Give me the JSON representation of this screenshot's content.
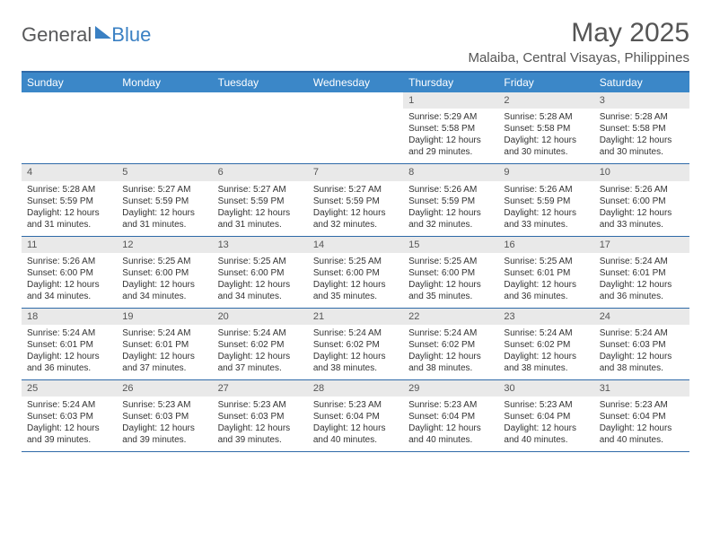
{
  "logo": {
    "general": "General",
    "blue": "Blue"
  },
  "title": "May 2025",
  "location": "Malaiba, Central Visayas, Philippines",
  "weekdays": [
    "Sunday",
    "Monday",
    "Tuesday",
    "Wednesday",
    "Thursday",
    "Friday",
    "Saturday"
  ],
  "colors": {
    "header_bg": "#3b87c8",
    "header_text": "#ffffff",
    "border": "#2f6aa8",
    "daynum_bg": "#e9e9e9",
    "body_text": "#333333",
    "title_text": "#555555",
    "logo_gray": "#57585a",
    "logo_blue": "#3a80c3"
  },
  "weeks": [
    [
      null,
      null,
      null,
      null,
      {
        "n": "1",
        "sr": "Sunrise: 5:29 AM",
        "ss": "Sunset: 5:58 PM",
        "d1": "Daylight: 12 hours",
        "d2": "and 29 minutes."
      },
      {
        "n": "2",
        "sr": "Sunrise: 5:28 AM",
        "ss": "Sunset: 5:58 PM",
        "d1": "Daylight: 12 hours",
        "d2": "and 30 minutes."
      },
      {
        "n": "3",
        "sr": "Sunrise: 5:28 AM",
        "ss": "Sunset: 5:58 PM",
        "d1": "Daylight: 12 hours",
        "d2": "and 30 minutes."
      }
    ],
    [
      {
        "n": "4",
        "sr": "Sunrise: 5:28 AM",
        "ss": "Sunset: 5:59 PM",
        "d1": "Daylight: 12 hours",
        "d2": "and 31 minutes."
      },
      {
        "n": "5",
        "sr": "Sunrise: 5:27 AM",
        "ss": "Sunset: 5:59 PM",
        "d1": "Daylight: 12 hours",
        "d2": "and 31 minutes."
      },
      {
        "n": "6",
        "sr": "Sunrise: 5:27 AM",
        "ss": "Sunset: 5:59 PM",
        "d1": "Daylight: 12 hours",
        "d2": "and 31 minutes."
      },
      {
        "n": "7",
        "sr": "Sunrise: 5:27 AM",
        "ss": "Sunset: 5:59 PM",
        "d1": "Daylight: 12 hours",
        "d2": "and 32 minutes."
      },
      {
        "n": "8",
        "sr": "Sunrise: 5:26 AM",
        "ss": "Sunset: 5:59 PM",
        "d1": "Daylight: 12 hours",
        "d2": "and 32 minutes."
      },
      {
        "n": "9",
        "sr": "Sunrise: 5:26 AM",
        "ss": "Sunset: 5:59 PM",
        "d1": "Daylight: 12 hours",
        "d2": "and 33 minutes."
      },
      {
        "n": "10",
        "sr": "Sunrise: 5:26 AM",
        "ss": "Sunset: 6:00 PM",
        "d1": "Daylight: 12 hours",
        "d2": "and 33 minutes."
      }
    ],
    [
      {
        "n": "11",
        "sr": "Sunrise: 5:26 AM",
        "ss": "Sunset: 6:00 PM",
        "d1": "Daylight: 12 hours",
        "d2": "and 34 minutes."
      },
      {
        "n": "12",
        "sr": "Sunrise: 5:25 AM",
        "ss": "Sunset: 6:00 PM",
        "d1": "Daylight: 12 hours",
        "d2": "and 34 minutes."
      },
      {
        "n": "13",
        "sr": "Sunrise: 5:25 AM",
        "ss": "Sunset: 6:00 PM",
        "d1": "Daylight: 12 hours",
        "d2": "and 34 minutes."
      },
      {
        "n": "14",
        "sr": "Sunrise: 5:25 AM",
        "ss": "Sunset: 6:00 PM",
        "d1": "Daylight: 12 hours",
        "d2": "and 35 minutes."
      },
      {
        "n": "15",
        "sr": "Sunrise: 5:25 AM",
        "ss": "Sunset: 6:00 PM",
        "d1": "Daylight: 12 hours",
        "d2": "and 35 minutes."
      },
      {
        "n": "16",
        "sr": "Sunrise: 5:25 AM",
        "ss": "Sunset: 6:01 PM",
        "d1": "Daylight: 12 hours",
        "d2": "and 36 minutes."
      },
      {
        "n": "17",
        "sr": "Sunrise: 5:24 AM",
        "ss": "Sunset: 6:01 PM",
        "d1": "Daylight: 12 hours",
        "d2": "and 36 minutes."
      }
    ],
    [
      {
        "n": "18",
        "sr": "Sunrise: 5:24 AM",
        "ss": "Sunset: 6:01 PM",
        "d1": "Daylight: 12 hours",
        "d2": "and 36 minutes."
      },
      {
        "n": "19",
        "sr": "Sunrise: 5:24 AM",
        "ss": "Sunset: 6:01 PM",
        "d1": "Daylight: 12 hours",
        "d2": "and 37 minutes."
      },
      {
        "n": "20",
        "sr": "Sunrise: 5:24 AM",
        "ss": "Sunset: 6:02 PM",
        "d1": "Daylight: 12 hours",
        "d2": "and 37 minutes."
      },
      {
        "n": "21",
        "sr": "Sunrise: 5:24 AM",
        "ss": "Sunset: 6:02 PM",
        "d1": "Daylight: 12 hours",
        "d2": "and 38 minutes."
      },
      {
        "n": "22",
        "sr": "Sunrise: 5:24 AM",
        "ss": "Sunset: 6:02 PM",
        "d1": "Daylight: 12 hours",
        "d2": "and 38 minutes."
      },
      {
        "n": "23",
        "sr": "Sunrise: 5:24 AM",
        "ss": "Sunset: 6:02 PM",
        "d1": "Daylight: 12 hours",
        "d2": "and 38 minutes."
      },
      {
        "n": "24",
        "sr": "Sunrise: 5:24 AM",
        "ss": "Sunset: 6:03 PM",
        "d1": "Daylight: 12 hours",
        "d2": "and 38 minutes."
      }
    ],
    [
      {
        "n": "25",
        "sr": "Sunrise: 5:24 AM",
        "ss": "Sunset: 6:03 PM",
        "d1": "Daylight: 12 hours",
        "d2": "and 39 minutes."
      },
      {
        "n": "26",
        "sr": "Sunrise: 5:23 AM",
        "ss": "Sunset: 6:03 PM",
        "d1": "Daylight: 12 hours",
        "d2": "and 39 minutes."
      },
      {
        "n": "27",
        "sr": "Sunrise: 5:23 AM",
        "ss": "Sunset: 6:03 PM",
        "d1": "Daylight: 12 hours",
        "d2": "and 39 minutes."
      },
      {
        "n": "28",
        "sr": "Sunrise: 5:23 AM",
        "ss": "Sunset: 6:04 PM",
        "d1": "Daylight: 12 hours",
        "d2": "and 40 minutes."
      },
      {
        "n": "29",
        "sr": "Sunrise: 5:23 AM",
        "ss": "Sunset: 6:04 PM",
        "d1": "Daylight: 12 hours",
        "d2": "and 40 minutes."
      },
      {
        "n": "30",
        "sr": "Sunrise: 5:23 AM",
        "ss": "Sunset: 6:04 PM",
        "d1": "Daylight: 12 hours",
        "d2": "and 40 minutes."
      },
      {
        "n": "31",
        "sr": "Sunrise: 5:23 AM",
        "ss": "Sunset: 6:04 PM",
        "d1": "Daylight: 12 hours",
        "d2": "and 40 minutes."
      }
    ]
  ]
}
